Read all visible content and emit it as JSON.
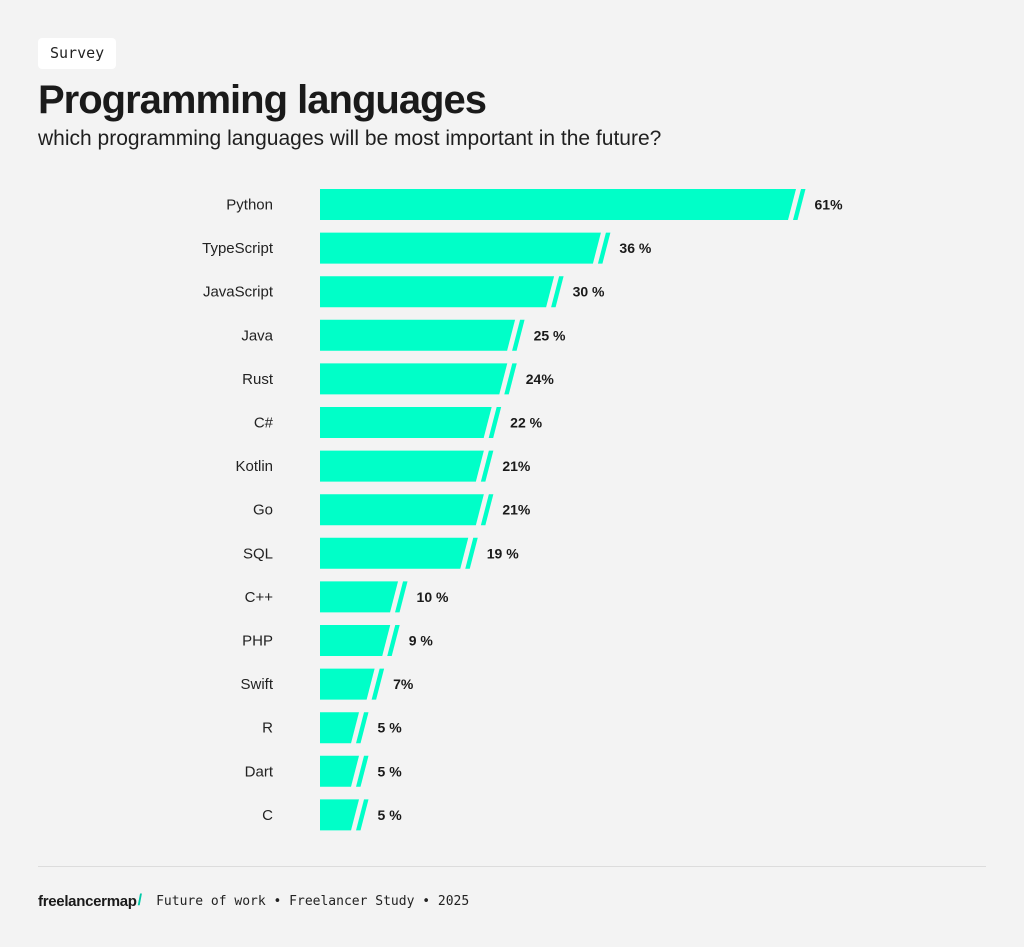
{
  "header": {
    "tag": "Survey",
    "title": "Programming languages",
    "subtitle": "which programming languages will be most important in the future?"
  },
  "footer": {
    "brand": "freelancermap",
    "brand_slash": "/",
    "text": "Future of work • Freelancer Study • 2025"
  },
  "colors": {
    "bar": "#00ffc8",
    "background": "#f3f3f3",
    "text": "#1a1a1a"
  },
  "chart_data": {
    "type": "bar",
    "orientation": "horizontal",
    "title": "Programming languages",
    "subtitle": "which programming languages will be most important in the future?",
    "categories": [
      "Python",
      "TypeScript",
      "JavaScript",
      "Java",
      "Rust",
      "C#",
      "Kotlin",
      "Go",
      "SQL",
      "C++",
      "PHP",
      "Swift",
      "R",
      "Dart",
      "C"
    ],
    "values": [
      61,
      36,
      30,
      25,
      24,
      22,
      21,
      21,
      19,
      10,
      9,
      7,
      5,
      5,
      5
    ],
    "value_labels": [
      "61%",
      "36 %",
      "30 %",
      "25 %",
      "24%",
      "22 %",
      "21%",
      "21%",
      "19 %",
      "10 %",
      "9 %",
      "7%",
      "5 %",
      "5 %",
      "5 %"
    ],
    "unit": "%",
    "xlabel": "",
    "ylabel": "",
    "xlim": [
      0,
      61
    ],
    "grid": false,
    "legend": "none"
  }
}
